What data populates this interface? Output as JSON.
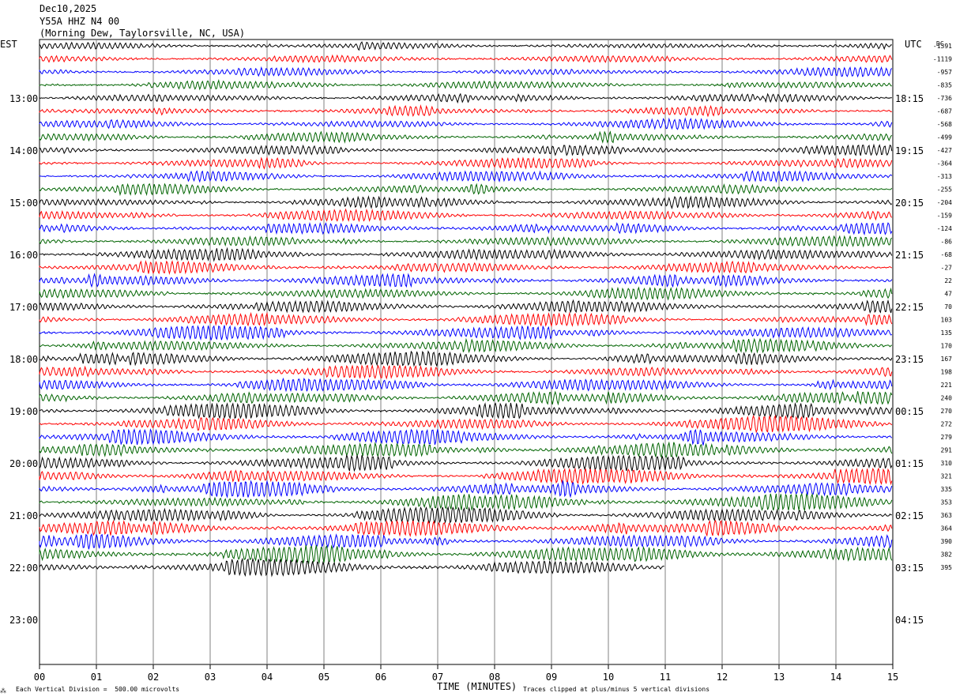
{
  "header": {
    "date": "Dec10,2025",
    "channel": "Y55A HHZ N4 00",
    "location": "(Morning Dew, Taylorsville, NC, USA)"
  },
  "labels": {
    "left_timezone": "EST",
    "right_timezone": "UTC",
    "dc_label": "DC",
    "xlabel": "TIME (MINUTES)",
    "scale_note": "Each Vertical Division =  500.00 microvolts",
    "clip_note": "Traces clipped at plus/minus 5 vertical divisions"
  },
  "chart_data": {
    "type": "helicorder",
    "x_ticks": [
      "00",
      "01",
      "02",
      "03",
      "04",
      "05",
      "06",
      "07",
      "08",
      "09",
      "10",
      "11",
      "12",
      "13",
      "14",
      "15"
    ],
    "xlim": [
      0,
      15
    ],
    "left_hours": [
      "13:00",
      "14:00",
      "15:00",
      "16:00",
      "17:00",
      "18:00",
      "19:00",
      "20:00",
      "21:00",
      "22:00",
      "23:00"
    ],
    "right_hours": [
      "18:15",
      "19:15",
      "20:15",
      "21:15",
      "22:15",
      "23:15",
      "00:15",
      "01:15",
      "02:15",
      "03:15",
      "04:15"
    ],
    "dc_offsets": [
      "-1391",
      "-1119",
      "-957",
      "-835",
      "-736",
      "-687",
      "-568",
      "-499",
      "-427",
      "-364",
      "-313",
      "-255",
      "-204",
      "-159",
      "-124",
      "-86",
      "-68",
      "-27",
      "22",
      "47",
      "70",
      "103",
      "135",
      "170",
      "167",
      "198",
      "221",
      "240",
      "270",
      "272",
      "279",
      "291",
      "310",
      "321",
      "335",
      "353",
      "363",
      "364",
      "390",
      "382",
      "395"
    ],
    "traces_total": 41,
    "last_trace_end_minute": 11.0,
    "trace_colors": [
      "#000000",
      "#ff0000",
      "#0000ff",
      "#006400"
    ]
  }
}
